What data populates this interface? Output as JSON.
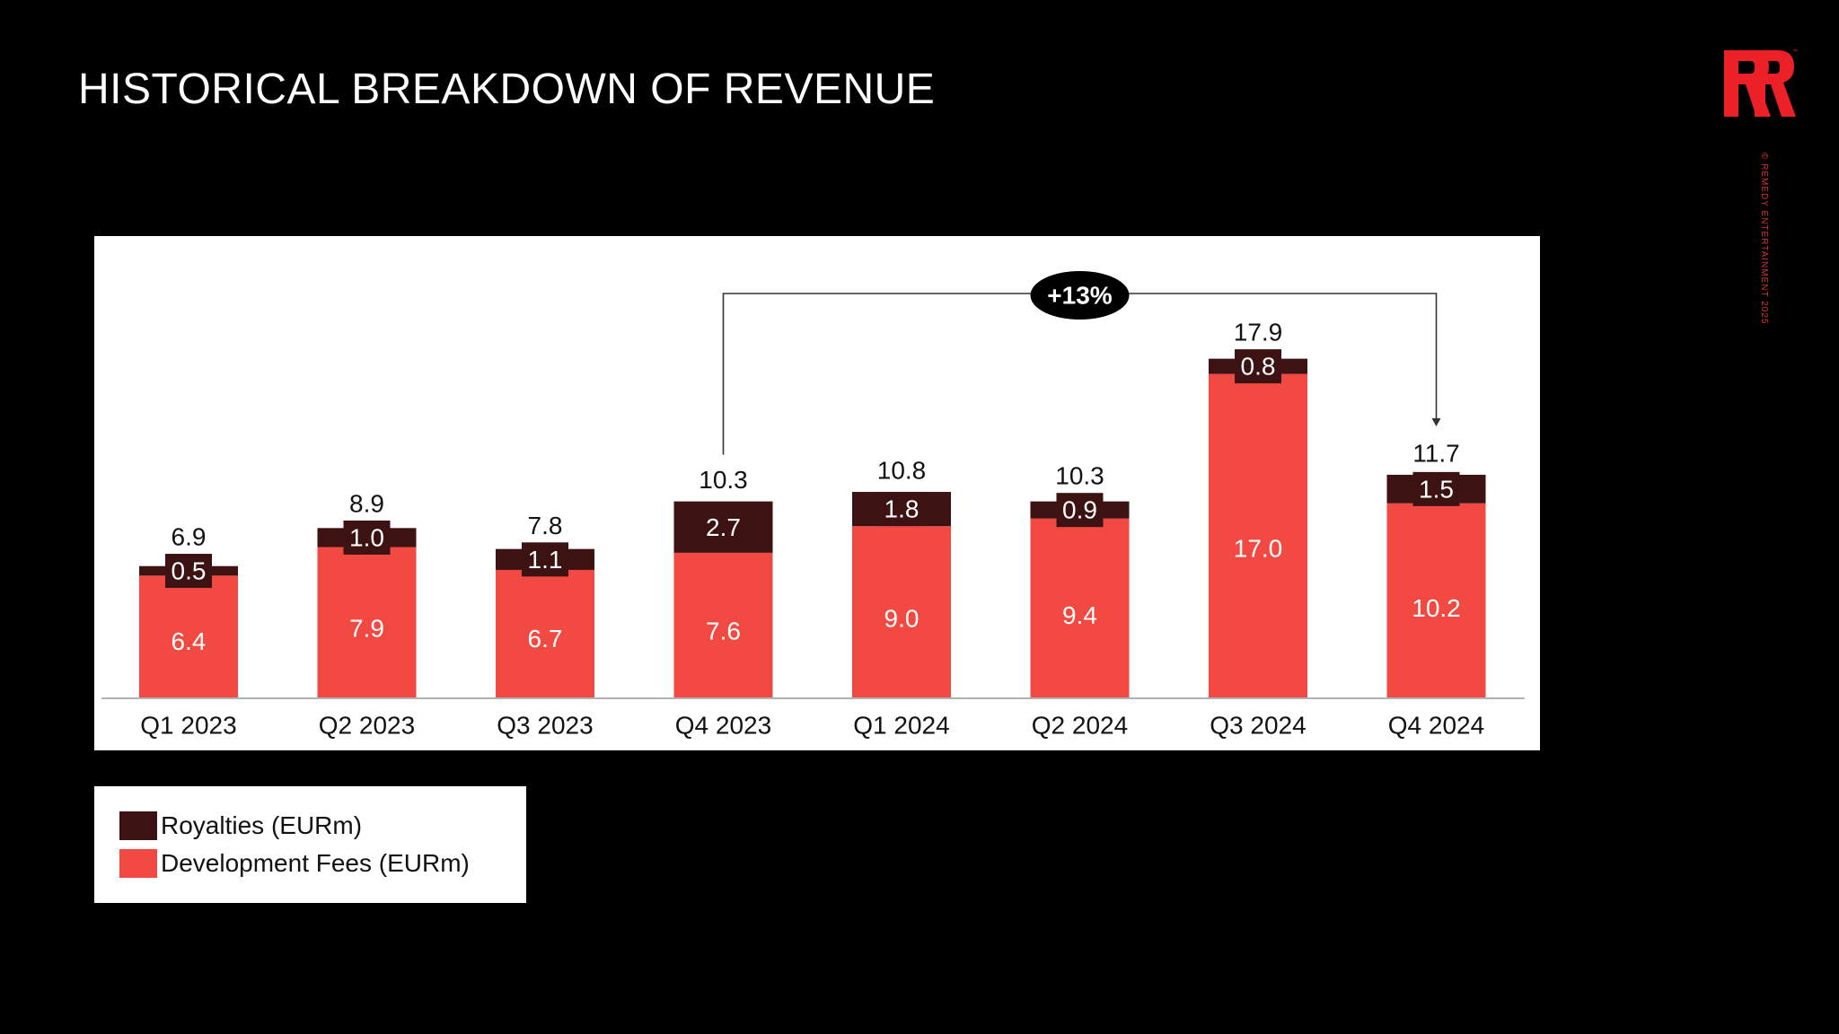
{
  "page": {
    "title": "HISTORICAL BREAKDOWN OF REVENUE",
    "copyright": "© REMEDY ENTERTAINMENT 2025",
    "logo_icon": "remedy-logo-icon",
    "logo_color": "#ec2027"
  },
  "colors": {
    "royalties": "#3d1212",
    "development_fees": "#f24a42",
    "background": "#000000",
    "panel": "#ffffff"
  },
  "chart_data": {
    "type": "bar",
    "stacked": true,
    "categories": [
      "Q1 2023",
      "Q2 2023",
      "Q3 2023",
      "Q4 2023",
      "Q1 2024",
      "Q2 2024",
      "Q3 2024",
      "Q4 2024"
    ],
    "series": [
      {
        "name": "Development Fees (EURm)",
        "values": [
          6.4,
          7.9,
          6.7,
          7.6,
          9.0,
          9.4,
          17.0,
          10.2
        ],
        "labels": [
          "6.4",
          "7.9",
          "6.7",
          "7.6",
          "9.0",
          "9.4",
          "17.0",
          "10.2"
        ]
      },
      {
        "name": "Royalties (EURm)",
        "values": [
          0.5,
          1.0,
          1.1,
          2.7,
          1.8,
          0.9,
          0.8,
          1.5
        ],
        "labels": [
          "0.5",
          "1.0",
          "1.1",
          "2.7",
          "1.8",
          "0.9",
          "0.8",
          "1.5"
        ]
      }
    ],
    "totals": [
      6.9,
      8.9,
      7.8,
      10.3,
      10.8,
      10.3,
      17.9,
      11.7
    ],
    "total_labels": [
      "6.9",
      "8.9",
      "7.8",
      "10.3",
      "10.8",
      "10.3",
      "17.9",
      "11.7"
    ],
    "ylim": [
      0,
      17.9
    ],
    "annotation": {
      "text": "+13%",
      "from": "Q4 2023",
      "to": "Q4 2024"
    },
    "legend": {
      "position": "bottom-left",
      "items": [
        "Royalties (EURm)",
        "Development Fees (EURm)"
      ]
    },
    "title": "",
    "xlabel": "",
    "ylabel": "",
    "grid": false
  }
}
